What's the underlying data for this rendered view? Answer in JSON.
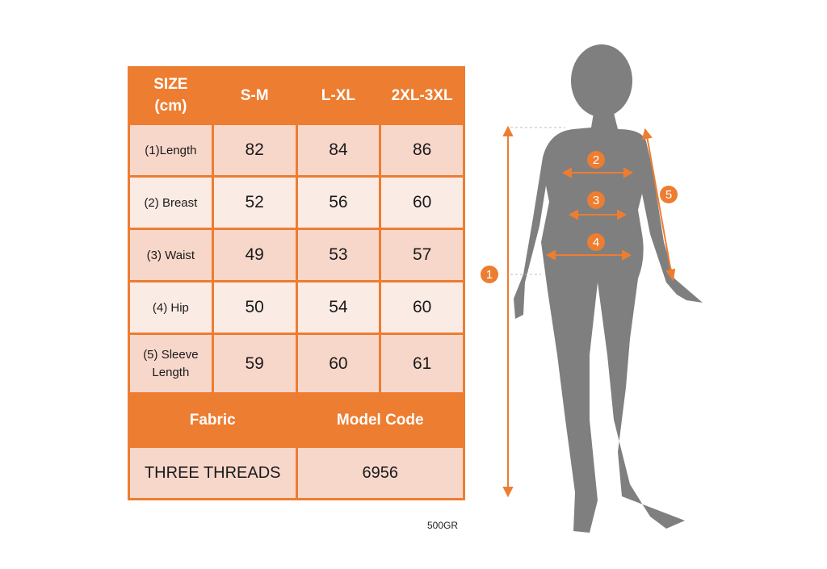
{
  "table": {
    "header": [
      "SIZE\n(cm)",
      "S-M",
      "L-XL",
      "2XL-3XL"
    ],
    "rows": [
      {
        "label": "(1)Length",
        "values": [
          "82",
          "84",
          "86"
        ]
      },
      {
        "label": "(2) Breast",
        "values": [
          "52",
          "56",
          "60"
        ]
      },
      {
        "label": "(3) Waist",
        "values": [
          "49",
          "53",
          "57"
        ]
      },
      {
        "label": "(4) Hip",
        "values": [
          "50",
          "54",
          "60"
        ]
      },
      {
        "label": "(5) Sleeve Length",
        "values": [
          "59",
          "60",
          "61"
        ]
      }
    ],
    "fabric_label": "Fabric",
    "model_code_label": "Model Code",
    "fabric_value": "THREE THREADS",
    "model_code_value": "6956"
  },
  "note": "500GR",
  "figure": {
    "markers": [
      "1",
      "2",
      "3",
      "4",
      "5"
    ]
  },
  "colors": {
    "accent": "#ED7D31",
    "row_dark": "#F8D7CB",
    "row_light": "#FBEBE5",
    "silhouette": "#7F7F7F"
  }
}
